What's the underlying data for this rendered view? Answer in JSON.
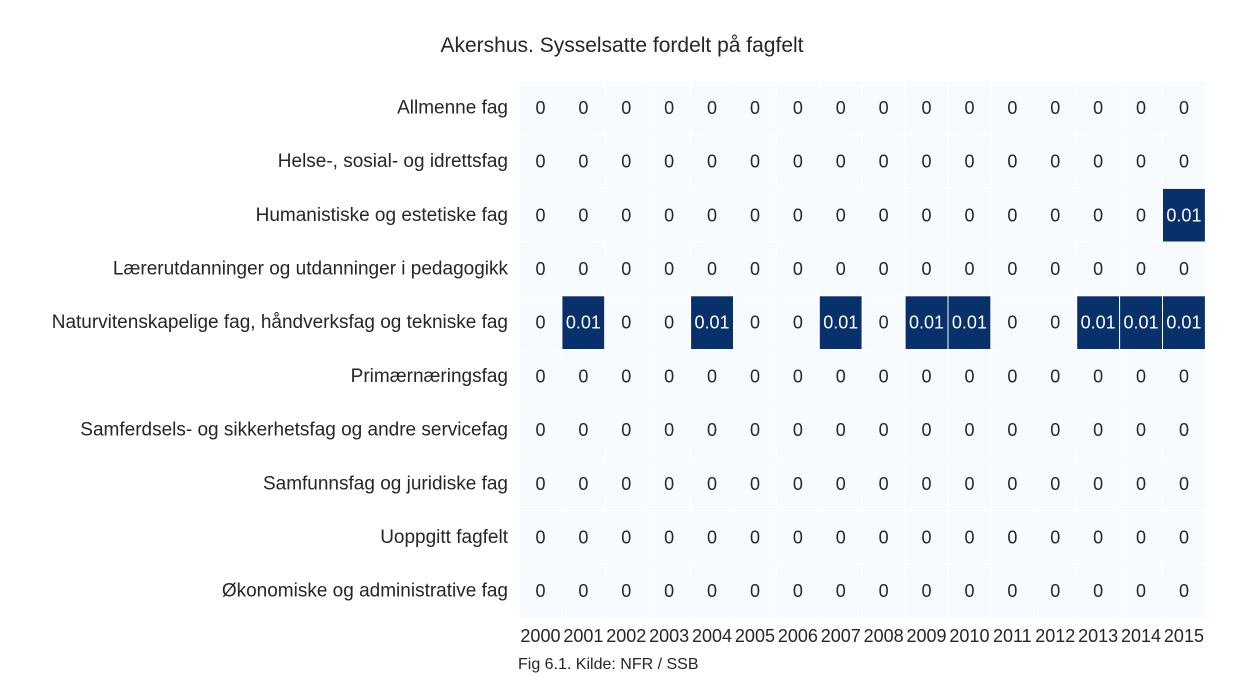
{
  "chart_data": {
    "type": "heatmap",
    "title": "Akershus. Sysselsatte fordelt på fagfelt",
    "caption": "Fig 6.1. Kilde: NFR / SSB",
    "x_categories": [
      "2000",
      "2001",
      "2002",
      "2003",
      "2004",
      "2005",
      "2006",
      "2007",
      "2008",
      "2009",
      "2010",
      "2011",
      "2012",
      "2013",
      "2014",
      "2015"
    ],
    "y_categories": [
      "Allmenne fag",
      "Helse-, sosial- og idrettsfag",
      "Humanistiske og estetiske fag",
      "Lærerutdanninger og utdanninger i pedagogikk",
      "Naturvitenskapelige fag, håndverksfag og tekniske fag",
      "Primærnæringsfag",
      "Samferdsels- og sikkerhetsfag og andre servicefag",
      "Samfunnsfag og juridiske fag",
      "Uoppgitt fagfelt",
      "Økonomiske og administrative fag"
    ],
    "values": [
      [
        0,
        0,
        0,
        0,
        0,
        0,
        0,
        0,
        0,
        0,
        0,
        0,
        0,
        0,
        0,
        0
      ],
      [
        0,
        0,
        0,
        0,
        0,
        0,
        0,
        0,
        0,
        0,
        0,
        0,
        0,
        0,
        0,
        0
      ],
      [
        0,
        0,
        0,
        0,
        0,
        0,
        0,
        0,
        0,
        0,
        0,
        0,
        0,
        0,
        0,
        0.01
      ],
      [
        0,
        0,
        0,
        0,
        0,
        0,
        0,
        0,
        0,
        0,
        0,
        0,
        0,
        0,
        0,
        0
      ],
      [
        0,
        0.01,
        0,
        0,
        0.01,
        0,
        0,
        0.01,
        0,
        0.01,
        0.01,
        0,
        0,
        0.01,
        0.01,
        0.01
      ],
      [
        0,
        0,
        0,
        0,
        0,
        0,
        0,
        0,
        0,
        0,
        0,
        0,
        0,
        0,
        0,
        0
      ],
      [
        0,
        0,
        0,
        0,
        0,
        0,
        0,
        0,
        0,
        0,
        0,
        0,
        0,
        0,
        0,
        0
      ],
      [
        0,
        0,
        0,
        0,
        0,
        0,
        0,
        0,
        0,
        0,
        0,
        0,
        0,
        0,
        0,
        0
      ],
      [
        0,
        0,
        0,
        0,
        0,
        0,
        0,
        0,
        0,
        0,
        0,
        0,
        0,
        0,
        0,
        0
      ],
      [
        0,
        0,
        0,
        0,
        0,
        0,
        0,
        0,
        0,
        0,
        0,
        0,
        0,
        0,
        0,
        0
      ]
    ],
    "value_labels": [
      [
        "0",
        "0",
        "0",
        "0",
        "0",
        "0",
        "0",
        "0",
        "0",
        "0",
        "0",
        "0",
        "0",
        "0",
        "0",
        "0"
      ],
      [
        "0",
        "0",
        "0",
        "0",
        "0",
        "0",
        "0",
        "0",
        "0",
        "0",
        "0",
        "0",
        "0",
        "0",
        "0",
        "0"
      ],
      [
        "0",
        "0",
        "0",
        "0",
        "0",
        "0",
        "0",
        "0",
        "0",
        "0",
        "0",
        "0",
        "0",
        "0",
        "0",
        "0.01"
      ],
      [
        "0",
        "0",
        "0",
        "0",
        "0",
        "0",
        "0",
        "0",
        "0",
        "0",
        "0",
        "0",
        "0",
        "0",
        "0",
        "0"
      ],
      [
        "0",
        "0.01",
        "0",
        "0",
        "0.01",
        "0",
        "0",
        "0.01",
        "0",
        "0.01",
        "0.01",
        "0",
        "0",
        "0.01",
        "0.01",
        "0.01"
      ],
      [
        "0",
        "0",
        "0",
        "0",
        "0",
        "0",
        "0",
        "0",
        "0",
        "0",
        "0",
        "0",
        "0",
        "0",
        "0",
        "0"
      ],
      [
        "0",
        "0",
        "0",
        "0",
        "0",
        "0",
        "0",
        "0",
        "0",
        "0",
        "0",
        "0",
        "0",
        "0",
        "0",
        "0"
      ],
      [
        "0",
        "0",
        "0",
        "0",
        "0",
        "0",
        "0",
        "0",
        "0",
        "0",
        "0",
        "0",
        "0",
        "0",
        "0",
        "0"
      ],
      [
        "0",
        "0",
        "0",
        "0",
        "0",
        "0",
        "0",
        "0",
        "0",
        "0",
        "0",
        "0",
        "0",
        "0",
        "0",
        "0"
      ],
      [
        "0",
        "0",
        "0",
        "0",
        "0",
        "0",
        "0",
        "0",
        "0",
        "0",
        "0",
        "0",
        "0",
        "0",
        "0",
        "0"
      ]
    ],
    "value_range": [
      0,
      0.01
    ],
    "colormap": "Blues",
    "colors": {
      "low": "#f7fbff",
      "high": "#08306b",
      "text_dark": "#262626",
      "text_light": "#ffffff",
      "cell_border": "#ffffff"
    },
    "colorbar": false,
    "grid": false
  }
}
